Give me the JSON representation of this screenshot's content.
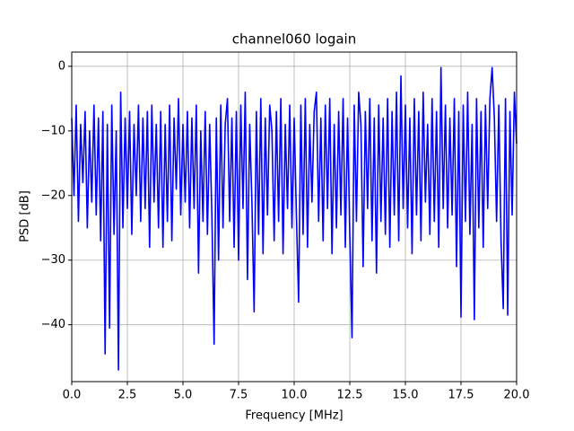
{
  "chart_data": {
    "type": "line",
    "title": "channel060 logain",
    "xlabel": "Frequency [MHz]",
    "ylabel": "PSD [dB]",
    "x": [
      0,
      0.1,
      0.2,
      0.3,
      0.4,
      0.5,
      0.6,
      0.7,
      0.8,
      0.9,
      1,
      1.1,
      1.2,
      1.3,
      1.4,
      1.5,
      1.6,
      1.7,
      1.8,
      1.9,
      2,
      2.1,
      2.2,
      2.3,
      2.4,
      2.5,
      2.6,
      2.7,
      2.8,
      2.9,
      3,
      3.1,
      3.2,
      3.3,
      3.4,
      3.5,
      3.6,
      3.7,
      3.8,
      3.9,
      4,
      4.1,
      4.2,
      4.3,
      4.4,
      4.5,
      4.6,
      4.7,
      4.8,
      4.9,
      5,
      5.1,
      5.2,
      5.3,
      5.4,
      5.5,
      5.6,
      5.7,
      5.8,
      5.9,
      6,
      6.1,
      6.2,
      6.3,
      6.4,
      6.5,
      6.6,
      6.7,
      6.8,
      6.9,
      7,
      7.1,
      7.2,
      7.3,
      7.4,
      7.5,
      7.6,
      7.7,
      7.8,
      7.9,
      8,
      8.1,
      8.2,
      8.3,
      8.4,
      8.5,
      8.6,
      8.7,
      8.8,
      8.9,
      9,
      9.1,
      9.2,
      9.3,
      9.4,
      9.5,
      9.6,
      9.7,
      9.8,
      9.9,
      10,
      10.1,
      10.2,
      10.3,
      10.4,
      10.5,
      10.6,
      10.7,
      10.8,
      10.9,
      11,
      11.1,
      11.2,
      11.3,
      11.4,
      11.5,
      11.6,
      11.7,
      11.8,
      11.9,
      12,
      12.1,
      12.2,
      12.3,
      12.4,
      12.5,
      12.6,
      12.7,
      12.8,
      12.9,
      13,
      13.1,
      13.2,
      13.3,
      13.4,
      13.5,
      13.6,
      13.7,
      13.8,
      13.9,
      14,
      14.1,
      14.2,
      14.3,
      14.4,
      14.5,
      14.6,
      14.7,
      14.8,
      14.9,
      15,
      15.1,
      15.2,
      15.3,
      15.4,
      15.5,
      15.6,
      15.7,
      15.8,
      15.9,
      16,
      16.1,
      16.2,
      16.3,
      16.4,
      16.5,
      16.6,
      16.7,
      16.8,
      16.9,
      17,
      17.1,
      17.2,
      17.3,
      17.4,
      17.5,
      17.6,
      17.7,
      17.8,
      17.9,
      18,
      18.1,
      18.2,
      18.3,
      18.4,
      18.5,
      18.6,
      18.7,
      18.8,
      18.9,
      19,
      19.1,
      19.2,
      19.3,
      19.4,
      19.5,
      19.6,
      19.7,
      19.8,
      19.9,
      20
    ],
    "series": [
      {
        "name": "PSD",
        "color": "#0000ff",
        "values": [
          -8,
          -20,
          -6,
          -24,
          -9,
          -18,
          -7,
          -25,
          -10,
          -21,
          -6,
          -23,
          -8,
          -27,
          -7,
          -44.5,
          -9,
          -40.5,
          -6,
          -26,
          -10,
          -47,
          -4,
          -25,
          -8,
          -22,
          -7,
          -26,
          -9,
          -20,
          -6,
          -24,
          -8,
          -22,
          -7,
          -28,
          -6,
          -21,
          -9,
          -25,
          -7,
          -28,
          -9,
          -24,
          -6,
          -27,
          -8,
          -19,
          -5,
          -23,
          -9,
          -21,
          -7,
          -25,
          -8,
          -22,
          -6,
          -32,
          -10,
          -24,
          -7,
          -26,
          -9,
          -23,
          -43,
          -8,
          -30,
          -6,
          -25,
          -9,
          -5,
          -24,
          -8,
          -28,
          -7,
          -30,
          -6,
          -22,
          -4,
          -33,
          -9,
          -21,
          -38,
          -7,
          -26,
          -5,
          -29,
          -8,
          -23,
          -6,
          -10,
          -27,
          -7,
          -24,
          -5,
          -29,
          -9,
          -22,
          -6,
          -25,
          -8,
          -23,
          -36.5,
          -6,
          -26,
          -5,
          -28,
          -9,
          -21,
          -7,
          -4,
          -24,
          -8,
          -27,
          -6,
          -22,
          -5,
          -29,
          -9,
          -25,
          -7,
          -23,
          -5,
          -28,
          -8,
          -26,
          -42,
          -6,
          -24,
          -4,
          -9,
          -31,
          -7,
          -22,
          -5,
          -27,
          -8,
          -32,
          -6,
          -24,
          -8,
          -26,
          -5,
          -28,
          -7,
          -23,
          -4,
          -27,
          -1.5,
          -22,
          -6,
          -25,
          -8,
          -29,
          -5,
          -23,
          -7,
          -27,
          -4,
          -21,
          -9,
          -26,
          -5,
          -24,
          -7,
          -28,
          -0.2,
          -22,
          -6,
          -25,
          -8,
          -23,
          -5,
          -31,
          -7,
          -38.8,
          -6,
          -24,
          -4,
          -26,
          -9,
          -39.2,
          -5,
          -25,
          -7,
          -28,
          -6,
          -22,
          -5,
          -0.2,
          -8,
          -24,
          -6,
          -27,
          -37.5,
          -5,
          -38.5,
          -7,
          -23,
          -4,
          -12
        ]
      }
    ],
    "xlim": [
      0,
      20
    ],
    "xticks": [
      {
        "value": 0,
        "label": "0.0"
      },
      2.5,
      {
        "value": 5,
        "label": "5.0"
      },
      7.5,
      {
        "value": 10,
        "label": "10.0"
      },
      12.5,
      {
        "value": 15,
        "label": "15.0"
      },
      17.5,
      {
        "value": 20,
        "label": "20.0"
      }
    ],
    "ylim": [
      -48.8,
      2.2
    ],
    "yticks": [
      {
        "value": -40,
        "label": "−40"
      },
      {
        "value": -30,
        "label": "−30"
      },
      {
        "value": -20,
        "label": "−20"
      },
      {
        "value": -10,
        "label": "−10"
      },
      0
    ],
    "grid": true
  }
}
